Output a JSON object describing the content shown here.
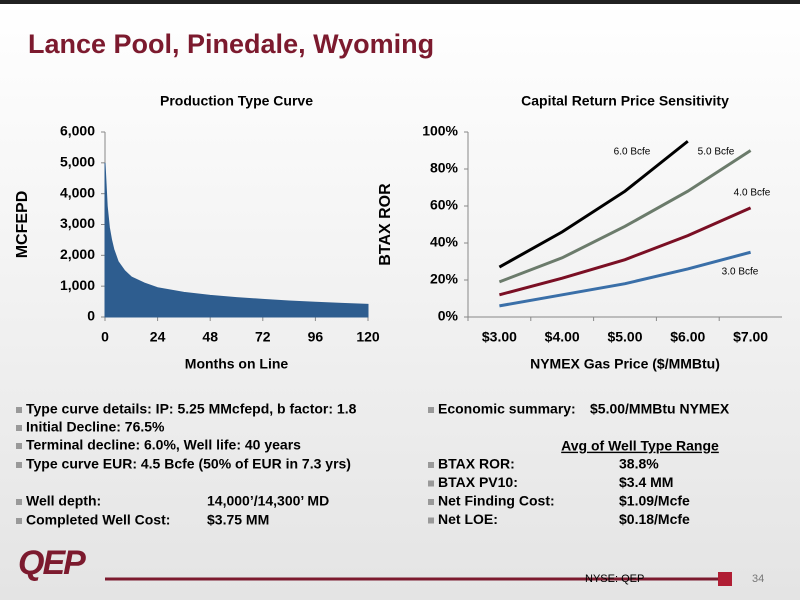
{
  "title": "Lance Pool, Pinedale, Wyoming",
  "chart_data": [
    {
      "type": "area",
      "title": "Production Type Curve",
      "x_label": "Months on Line",
      "y_label": "MCFEPD",
      "color": "#2e5d8f",
      "x": [
        0,
        1,
        2,
        3,
        4,
        6,
        9,
        12,
        18,
        24,
        36,
        48,
        60,
        72,
        84,
        96,
        108,
        120
      ],
      "values": [
        5000,
        3600,
        2900,
        2500,
        2200,
        1800,
        1500,
        1300,
        1100,
        950,
        800,
        700,
        630,
        570,
        520,
        480,
        440,
        410
      ],
      "xlim": [
        0,
        120
      ],
      "xticks": [
        0,
        24,
        48,
        72,
        96,
        120
      ],
      "ylim": [
        0,
        6000
      ],
      "yticks": [
        0,
        {
          "value": 1000,
          "label": "1,000"
        },
        {
          "value": 2000,
          "label": "2,000"
        },
        {
          "value": 3000,
          "label": "3,000"
        },
        {
          "value": 4000,
          "label": "4,000"
        },
        {
          "value": 5000,
          "label": "5,000"
        },
        {
          "value": 6000,
          "label": "6,000"
        }
      ]
    },
    {
      "type": "line",
      "title": "Capital Return Price Sensitivity",
      "x_label": "NYMEX Gas Price ($/MMBtu)",
      "y_label": "BTAX ROR",
      "categories": [
        "$3.00",
        "$4.00",
        "$5.00",
        "$6.00",
        "$7.00"
      ],
      "series": [
        {
          "name": "6.0 Bcfe",
          "color": "#000000",
          "values": [
            27,
            46,
            68,
            95,
            null
          ]
        },
        {
          "name": "5.0 Bcfe",
          "color": "#6b7b6b",
          "values": [
            19,
            32,
            49,
            68,
            90
          ]
        },
        {
          "name": "4.0 Bcfe",
          "color": "#7a0f24",
          "values": [
            12,
            21,
            31,
            44,
            59
          ]
        },
        {
          "name": "3.0 Bcfe",
          "color": "#3a6fa8",
          "values": [
            6,
            12,
            18,
            26,
            35
          ]
        }
      ],
      "ylim": [
        0,
        100
      ],
      "yticks": [
        {
          "value": 0,
          "label": "0%"
        },
        {
          "value": 20,
          "label": "20%"
        },
        {
          "value": 40,
          "label": "40%"
        },
        {
          "value": 60,
          "label": "60%"
        },
        {
          "value": 80,
          "label": "80%"
        },
        {
          "value": 100,
          "label": "100%"
        }
      ]
    }
  ],
  "left_bullets": [
    [
      "Type curve details: IP:  5.25 MMcfepd, b factor: 1.8"
    ],
    [
      "Initial Decline:  76.5%"
    ],
    [
      "Terminal decline:  6.0%, Well life:  40 years"
    ],
    [
      "Type curve EUR:   4.5 Bcfe (50% of EUR in 7.3 yrs)"
    ],
    [
      "Well depth:",
      "14,000’/14,300’ MD"
    ],
    [
      "Completed Well Cost:",
      "$3.75 MM"
    ]
  ],
  "economic_summary": [
    "Economic summary:",
    "$5.00/MMBtu NYMEX"
  ],
  "range_heading": "Avg of Well Type Range",
  "range_rows": [
    [
      "BTAX ROR:",
      "38.8%"
    ],
    [
      "BTAX PV10:",
      "$3.4 MM"
    ],
    [
      "Net Finding Cost:",
      "$1.09/Mcfe"
    ],
    [
      "Net LOE:",
      "$0.18/Mcfe"
    ]
  ],
  "logo": "QEP",
  "ticker": "NYSE: QEP",
  "page_number": "34"
}
